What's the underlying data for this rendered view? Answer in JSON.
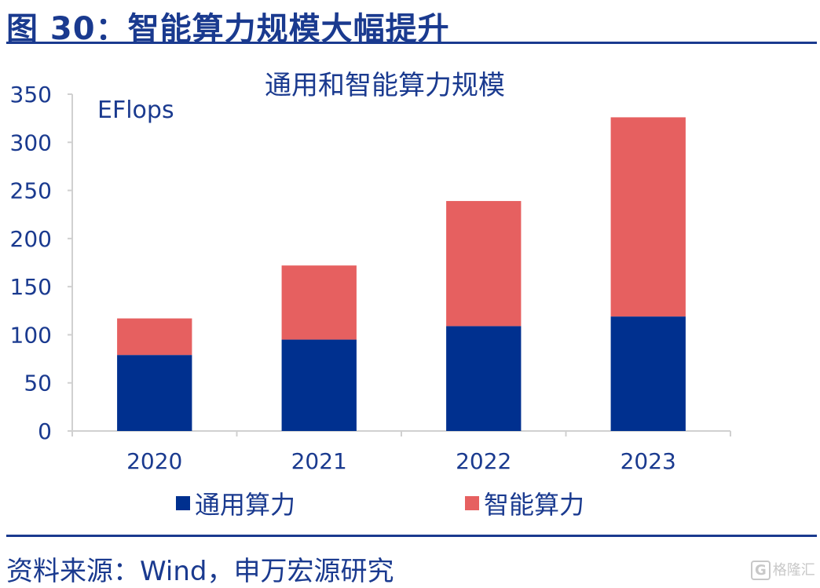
{
  "figure": {
    "title": "图 30：智能算力规模大幅提升",
    "source": "资料来源：Wind，申万宏源研究",
    "watermark": "格隆汇"
  },
  "chart_data": {
    "type": "bar",
    "stacked": true,
    "title": "通用和智能算力规模",
    "unit_label": "EFlops",
    "categories": [
      "2020",
      "2021",
      "2022",
      "2023"
    ],
    "series": [
      {
        "name": "通用算力",
        "values": [
          79,
          95,
          109,
          119
        ],
        "color": "#00308f"
      },
      {
        "name": "智能算力",
        "values": [
          38,
          77,
          130,
          207
        ],
        "color": "#e66060"
      }
    ],
    "ylim": [
      0,
      350
    ],
    "yticks": [
      0,
      50,
      100,
      150,
      200,
      250,
      300,
      350
    ],
    "grid": false,
    "legend_position": "bottom"
  }
}
